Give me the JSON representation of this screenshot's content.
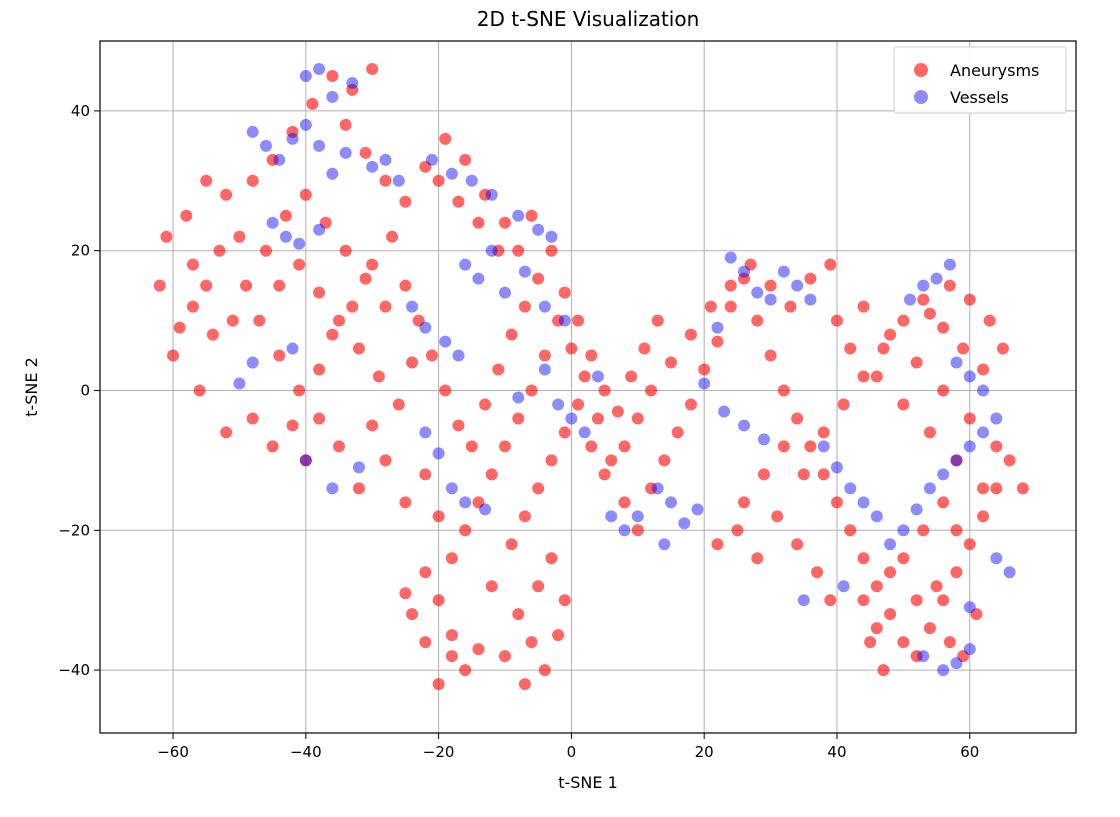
{
  "chart_data": {
    "type": "scatter",
    "title": "2D t-SNE Visualization",
    "xlabel": "t-SNE 1",
    "ylabel": "t-SNE 2",
    "xlim": [
      -71,
      76
    ],
    "ylim": [
      -49,
      50
    ],
    "x_ticks": [
      -60,
      -40,
      -20,
      0,
      20,
      40,
      60
    ],
    "y_ticks": [
      -40,
      -20,
      0,
      20,
      40
    ],
    "x_tick_labels": [
      "−60",
      "−40",
      "−20",
      "0",
      "20",
      "40",
      "60"
    ],
    "y_tick_labels": [
      "−40",
      "−20",
      "0",
      "20",
      "40"
    ],
    "grid": true,
    "legend_position": "top-right",
    "series": [
      {
        "name": "Aneurysms",
        "color": "#ff0000",
        "points": [
          [
            -62,
            15
          ],
          [
            -58,
            25
          ],
          [
            -55,
            30
          ],
          [
            -52,
            28
          ],
          [
            -50,
            22
          ],
          [
            -57,
            12
          ],
          [
            -54,
            8
          ],
          [
            -60,
            5
          ],
          [
            -56,
            0
          ],
          [
            -52,
            -6
          ],
          [
            -48,
            -4
          ],
          [
            -45,
            -8
          ],
          [
            -42,
            -5
          ],
          [
            -40,
            -10
          ],
          [
            -38,
            -4
          ],
          [
            -35,
            -8
          ],
          [
            -32,
            -14
          ],
          [
            -30,
            -5
          ],
          [
            -28,
            -10
          ],
          [
            -25,
            -16
          ],
          [
            -22,
            -12
          ],
          [
            -20,
            -18
          ],
          [
            -53,
            20
          ],
          [
            -49,
            15
          ],
          [
            -47,
            10
          ],
          [
            -44,
            5
          ],
          [
            -41,
            0
          ],
          [
            -38,
            3
          ],
          [
            -36,
            8
          ],
          [
            -33,
            12
          ],
          [
            -30,
            18
          ],
          [
            -27,
            22
          ],
          [
            -25,
            15
          ],
          [
            -23,
            10
          ],
          [
            -21,
            5
          ],
          [
            -19,
            0
          ],
          [
            -17,
            -5
          ],
          [
            -15,
            -8
          ],
          [
            -13,
            -2
          ],
          [
            -11,
            3
          ],
          [
            -9,
            8
          ],
          [
            -7,
            12
          ],
          [
            -5,
            16
          ],
          [
            -3,
            20
          ],
          [
            -1,
            14
          ],
          [
            1,
            10
          ],
          [
            3,
            5
          ],
          [
            5,
            0
          ],
          [
            7,
            -3
          ],
          [
            9,
            2
          ],
          [
            11,
            6
          ],
          [
            13,
            10
          ],
          [
            -48,
            30
          ],
          [
            -45,
            33
          ],
          [
            -42,
            37
          ],
          [
            -39,
            41
          ],
          [
            -36,
            45
          ],
          [
            -33,
            43
          ],
          [
            -30,
            46
          ],
          [
            -34,
            38
          ],
          [
            -31,
            34
          ],
          [
            -28,
            30
          ],
          [
            -25,
            27
          ],
          [
            -22,
            32
          ],
          [
            -19,
            36
          ],
          [
            -16,
            33
          ],
          [
            -13,
            28
          ],
          [
            -10,
            24
          ],
          [
            -8,
            20
          ],
          [
            -6,
            25
          ],
          [
            -20,
            30
          ],
          [
            -17,
            27
          ],
          [
            -14,
            24
          ],
          [
            -11,
            20
          ],
          [
            -51,
            10
          ],
          [
            -57,
            18
          ],
          [
            -61,
            22
          ],
          [
            -59,
            9
          ],
          [
            -55,
            15
          ],
          [
            -46,
            20
          ],
          [
            -43,
            25
          ],
          [
            -40,
            28
          ],
          [
            -37,
            24
          ],
          [
            -34,
            20
          ],
          [
            -31,
            16
          ],
          [
            -28,
            12
          ],
          [
            -44,
            15
          ],
          [
            -41,
            18
          ],
          [
            -38,
            14
          ],
          [
            -35,
            10
          ],
          [
            -32,
            6
          ],
          [
            -29,
            2
          ],
          [
            -26,
            -2
          ],
          [
            -24,
            4
          ],
          [
            -20,
            -30
          ],
          [
            -18,
            -35
          ],
          [
            -16,
            -40
          ],
          [
            -14,
            -37
          ],
          [
            -20,
            -42
          ],
          [
            -18,
            -38
          ],
          [
            -22,
            -36
          ],
          [
            -24,
            -32
          ],
          [
            -12,
            -28
          ],
          [
            -8,
            -32
          ],
          [
            -6,
            -36
          ],
          [
            -4,
            -40
          ],
          [
            -2,
            -35
          ],
          [
            -10,
            -38
          ],
          [
            -7,
            -42
          ],
          [
            -5,
            -28
          ],
          [
            -3,
            -24
          ],
          [
            -1,
            -30
          ],
          [
            -9,
            -22
          ],
          [
            -7,
            -18
          ],
          [
            -5,
            -14
          ],
          [
            -3,
            -10
          ],
          [
            -1,
            -6
          ],
          [
            1,
            -2
          ],
          [
            3,
            -8
          ],
          [
            5,
            -12
          ],
          [
            8,
            -16
          ],
          [
            10,
            -20
          ],
          [
            12,
            -14
          ],
          [
            14,
            -10
          ],
          [
            16,
            -6
          ],
          [
            18,
            -2
          ],
          [
            20,
            3
          ],
          [
            22,
            7
          ],
          [
            24,
            12
          ],
          [
            26,
            16
          ],
          [
            28,
            10
          ],
          [
            30,
            5
          ],
          [
            32,
            0
          ],
          [
            34,
            -4
          ],
          [
            36,
            -8
          ],
          [
            38,
            -12
          ],
          [
            40,
            -16
          ],
          [
            42,
            -20
          ],
          [
            44,
            -24
          ],
          [
            46,
            -28
          ],
          [
            48,
            -32
          ],
          [
            50,
            -36
          ],
          [
            52,
            -38
          ],
          [
            54,
            -34
          ],
          [
            56,
            -30
          ],
          [
            58,
            -26
          ],
          [
            60,
            -22
          ],
          [
            62,
            -18
          ],
          [
            64,
            -14
          ],
          [
            66,
            -10
          ],
          [
            68,
            -14
          ],
          [
            64,
            -8
          ],
          [
            60,
            -4
          ],
          [
            56,
            0
          ],
          [
            52,
            4
          ],
          [
            48,
            8
          ],
          [
            44,
            12
          ],
          [
            40,
            10
          ],
          [
            42,
            6
          ],
          [
            46,
            2
          ],
          [
            50,
            -2
          ],
          [
            54,
            -6
          ],
          [
            58,
            -10
          ],
          [
            62,
            -14
          ],
          [
            22,
            -22
          ],
          [
            25,
            -20
          ],
          [
            28,
            -24
          ],
          [
            31,
            -18
          ],
          [
            34,
            -22
          ],
          [
            37,
            -26
          ],
          [
            39,
            -30
          ],
          [
            26,
            -16
          ],
          [
            29,
            -12
          ],
          [
            32,
            -8
          ],
          [
            35,
            -12
          ],
          [
            38,
            -6
          ],
          [
            41,
            -2
          ],
          [
            44,
            2
          ],
          [
            47,
            6
          ],
          [
            50,
            10
          ],
          [
            53,
            13
          ],
          [
            56,
            9
          ],
          [
            59,
            6
          ],
          [
            62,
            3
          ],
          [
            65,
            6
          ],
          [
            63,
            10
          ],
          [
            60,
            13
          ],
          [
            57,
            15
          ],
          [
            54,
            11
          ],
          [
            30,
            15
          ],
          [
            33,
            12
          ],
          [
            36,
            16
          ],
          [
            39,
            18
          ],
          [
            27,
            18
          ],
          [
            24,
            15
          ],
          [
            21,
            12
          ],
          [
            18,
            8
          ],
          [
            15,
            4
          ],
          [
            12,
            0
          ],
          [
            10,
            -4
          ],
          [
            8,
            -8
          ],
          [
            6,
            -10
          ],
          [
            4,
            -4
          ],
          [
            2,
            2
          ],
          [
            0,
            6
          ],
          [
            -2,
            10
          ],
          [
            -4,
            5
          ],
          [
            -6,
            0
          ],
          [
            -8,
            -4
          ],
          [
            -10,
            -8
          ],
          [
            -12,
            -12
          ],
          [
            -14,
            -16
          ],
          [
            -16,
            -20
          ],
          [
            -18,
            -24
          ],
          [
            -22,
            -26
          ],
          [
            -25,
            -29
          ],
          [
            50,
            -24
          ],
          [
            53,
            -20
          ],
          [
            56,
            -16
          ],
          [
            58,
            -20
          ],
          [
            55,
            -28
          ],
          [
            52,
            -30
          ],
          [
            48,
            -26
          ],
          [
            45,
            -36
          ],
          [
            47,
            -40
          ],
          [
            57,
            -36
          ],
          [
            59,
            -38
          ],
          [
            61,
            -32
          ],
          [
            44,
            -30
          ],
          [
            46,
            -34
          ]
        ]
      },
      {
        "name": "Vessels",
        "color": "#0000ff",
        "points": [
          [
            -48,
            37
          ],
          [
            -46,
            35
          ],
          [
            -44,
            33
          ],
          [
            -42,
            36
          ],
          [
            -40,
            38
          ],
          [
            -38,
            35
          ],
          [
            -36,
            31
          ],
          [
            -34,
            34
          ],
          [
            -30,
            32
          ],
          [
            -28,
            33
          ],
          [
            -26,
            30
          ],
          [
            -40,
            45
          ],
          [
            -38,
            46
          ],
          [
            -36,
            42
          ],
          [
            -33,
            44
          ],
          [
            -45,
            24
          ],
          [
            -43,
            22
          ],
          [
            -41,
            21
          ],
          [
            -38,
            23
          ],
          [
            -21,
            33
          ],
          [
            -18,
            31
          ],
          [
            -15,
            30
          ],
          [
            -12,
            28
          ],
          [
            -8,
            25
          ],
          [
            -5,
            23
          ],
          [
            -3,
            22
          ],
          [
            -16,
            18
          ],
          [
            -14,
            16
          ],
          [
            -12,
            20
          ],
          [
            -10,
            14
          ],
          [
            -7,
            17
          ],
          [
            -4,
            12
          ],
          [
            -1,
            10
          ],
          [
            -24,
            12
          ],
          [
            -22,
            9
          ],
          [
            -19,
            7
          ],
          [
            -17,
            5
          ],
          [
            -50,
            1
          ],
          [
            -48,
            4
          ],
          [
            -42,
            6
          ],
          [
            -40,
            -10
          ],
          [
            -36,
            -14
          ],
          [
            -32,
            -11
          ],
          [
            -22,
            -6
          ],
          [
            -20,
            -9
          ],
          [
            -18,
            -14
          ],
          [
            -16,
            -16
          ],
          [
            -13,
            -17
          ],
          [
            -8,
            -1
          ],
          [
            -4,
            3
          ],
          [
            -2,
            -2
          ],
          [
            0,
            -4
          ],
          [
            2,
            -6
          ],
          [
            4,
            2
          ],
          [
            6,
            -18
          ],
          [
            8,
            -20
          ],
          [
            10,
            -18
          ],
          [
            13,
            -14
          ],
          [
            15,
            -16
          ],
          [
            17,
            -19
          ],
          [
            19,
            -17
          ],
          [
            22,
            9
          ],
          [
            24,
            19
          ],
          [
            26,
            17
          ],
          [
            28,
            14
          ],
          [
            30,
            13
          ],
          [
            32,
            17
          ],
          [
            34,
            15
          ],
          [
            36,
            13
          ],
          [
            38,
            -8
          ],
          [
            40,
            -11
          ],
          [
            42,
            -14
          ],
          [
            44,
            -16
          ],
          [
            46,
            -18
          ],
          [
            48,
            -22
          ],
          [
            50,
            -20
          ],
          [
            52,
            -17
          ],
          [
            54,
            -14
          ],
          [
            56,
            -12
          ],
          [
            58,
            -10
          ],
          [
            60,
            -8
          ],
          [
            62,
            -6
          ],
          [
            64,
            -4
          ],
          [
            57,
            18
          ],
          [
            55,
            16
          ],
          [
            53,
            15
          ],
          [
            51,
            13
          ],
          [
            58,
            4
          ],
          [
            60,
            2
          ],
          [
            62,
            0
          ],
          [
            35,
            -30
          ],
          [
            41,
            -28
          ],
          [
            53,
            -38
          ],
          [
            56,
            -40
          ],
          [
            58,
            -39
          ],
          [
            60,
            -37
          ],
          [
            14,
            -22
          ],
          [
            64,
            -24
          ],
          [
            66,
            -26
          ],
          [
            60,
            -31
          ],
          [
            20,
            1
          ],
          [
            23,
            -3
          ],
          [
            26,
            -5
          ],
          [
            29,
            -7
          ]
        ]
      }
    ]
  }
}
